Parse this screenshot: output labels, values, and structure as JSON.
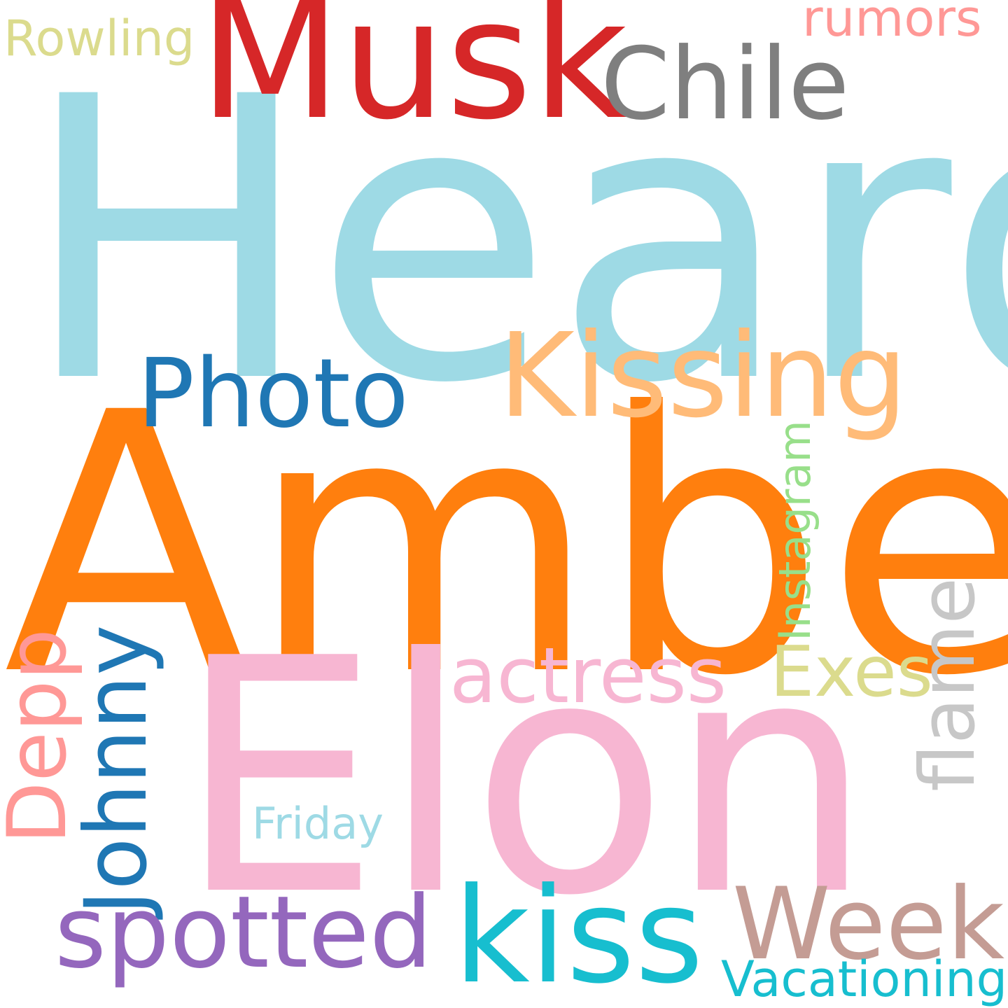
{
  "words": [
    {
      "text": "Heard",
      "color": "#9edae5"
    },
    {
      "text": "Amber",
      "color": "#ff7f0e"
    },
    {
      "text": "Elon",
      "color": "#f7b6d2"
    },
    {
      "text": "Musk",
      "color": "#d62728"
    },
    {
      "text": "Chile",
      "color": "#7f7f7f"
    },
    {
      "text": "Rowling",
      "color": "#dbdb8d"
    },
    {
      "text": "rumors",
      "color": "#ff9896"
    },
    {
      "text": "Kissing",
      "color": "#ffbb78"
    },
    {
      "text": "Photo",
      "color": "#1f77b4"
    },
    {
      "text": "actress",
      "color": "#f7b6d2"
    },
    {
      "text": "Exes",
      "color": "#dbdb8d"
    },
    {
      "text": "Instagram",
      "color": "#98df8a"
    },
    {
      "text": "flame",
      "color": "#c7c7c7"
    },
    {
      "text": "Depp",
      "color": "#ff9896"
    },
    {
      "text": "Johnny",
      "color": "#1f77b4"
    },
    {
      "text": "Friday",
      "color": "#9edae5"
    },
    {
      "text": "spotted",
      "color": "#9467bd"
    },
    {
      "text": "kiss",
      "color": "#17becf"
    },
    {
      "text": "Week",
      "color": "#c49c94"
    },
    {
      "text": "Vacationing",
      "color": "#17becf"
    }
  ]
}
